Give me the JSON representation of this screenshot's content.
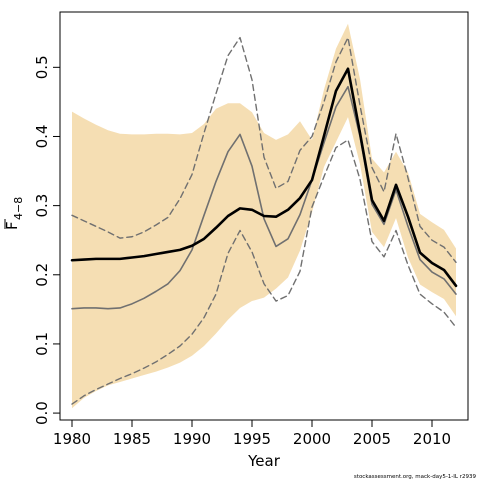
{
  "chart_data": {
    "type": "line",
    "xlabel": "Year",
    "ylabel_main": "F",
    "ylabel_sub": "4−8",
    "footnote": "stockassessment.org, mack-day5-1-IL r2939",
    "xlim": [
      1979,
      2013
    ],
    "ylim": [
      -0.01,
      0.58
    ],
    "x_ticks": [
      1980,
      1985,
      1990,
      1995,
      2000,
      2005,
      2010
    ],
    "y_ticks": [
      0.0,
      0.1,
      0.2,
      0.3,
      0.4,
      0.5
    ],
    "y_tick_labels": [
      "0.0",
      "0.1",
      "0.2",
      "0.3",
      "0.4",
      "0.5"
    ],
    "x": [
      1980,
      1981,
      1982,
      1983,
      1984,
      1985,
      1986,
      1987,
      1988,
      1989,
      1990,
      1991,
      1992,
      1993,
      1994,
      1995,
      1996,
      1997,
      1998,
      1999,
      2000,
      2001,
      2002,
      2003,
      2004,
      2005,
      2006,
      2007,
      2008,
      2009,
      2010,
      2011,
      2012
    ],
    "colors": {
      "band": "#f5deb3",
      "estimate": "#000000",
      "alt": "#707070"
    },
    "series": [
      {
        "role": "band",
        "upper": [
          0.436,
          0.426,
          0.417,
          0.409,
          0.404,
          0.403,
          0.403,
          0.404,
          0.404,
          0.403,
          0.405,
          0.418,
          0.44,
          0.448,
          0.448,
          0.435,
          0.405,
          0.395,
          0.403,
          0.422,
          0.395,
          0.468,
          0.527,
          0.563,
          0.483,
          0.368,
          0.348,
          0.378,
          0.348,
          0.288,
          0.276,
          0.265,
          0.238
        ],
        "lower": [
          0.007,
          0.022,
          0.032,
          0.04,
          0.045,
          0.05,
          0.055,
          0.06,
          0.066,
          0.073,
          0.083,
          0.097,
          0.115,
          0.135,
          0.152,
          0.162,
          0.167,
          0.18,
          0.196,
          0.235,
          0.29,
          0.356,
          0.392,
          0.428,
          0.36,
          0.262,
          0.24,
          0.282,
          0.225,
          0.186,
          0.175,
          0.165,
          0.14
        ]
      },
      {
        "role": "estimate",
        "values": [
          0.221,
          0.222,
          0.223,
          0.223,
          0.223,
          0.225,
          0.227,
          0.23,
          0.233,
          0.236,
          0.242,
          0.252,
          0.268,
          0.285,
          0.296,
          0.294,
          0.285,
          0.284,
          0.294,
          0.311,
          0.337,
          0.401,
          0.466,
          0.498,
          0.405,
          0.308,
          0.278,
          0.33,
          0.284,
          0.232,
          0.217,
          0.207,
          0.184
        ]
      },
      {
        "role": "alt",
        "values": [
          0.151,
          0.152,
          0.152,
          0.151,
          0.152,
          0.158,
          0.166,
          0.176,
          0.187,
          0.206,
          0.236,
          0.286,
          0.335,
          0.378,
          0.403,
          0.357,
          0.281,
          0.241,
          0.252,
          0.287,
          0.337,
          0.391,
          0.443,
          0.472,
          0.4,
          0.302,
          0.273,
          0.323,
          0.27,
          0.222,
          0.204,
          0.194,
          0.172
        ]
      },
      {
        "role": "alt-upper",
        "values": [
          0.286,
          0.278,
          0.27,
          0.262,
          0.253,
          0.255,
          0.262,
          0.272,
          0.283,
          0.31,
          0.345,
          0.405,
          0.462,
          0.517,
          0.543,
          0.482,
          0.37,
          0.325,
          0.335,
          0.38,
          0.4,
          0.45,
          0.508,
          0.543,
          0.445,
          0.355,
          0.32,
          0.404,
          0.34,
          0.27,
          0.25,
          0.24,
          0.218
        ]
      },
      {
        "role": "alt-lower",
        "values": [
          0.013,
          0.025,
          0.034,
          0.042,
          0.05,
          0.057,
          0.065,
          0.074,
          0.085,
          0.097,
          0.114,
          0.138,
          0.172,
          0.231,
          0.264,
          0.233,
          0.187,
          0.162,
          0.17,
          0.205,
          0.298,
          0.342,
          0.384,
          0.395,
          0.338,
          0.248,
          0.226,
          0.264,
          0.214,
          0.172,
          0.158,
          0.146,
          0.124
        ]
      }
    ]
  }
}
